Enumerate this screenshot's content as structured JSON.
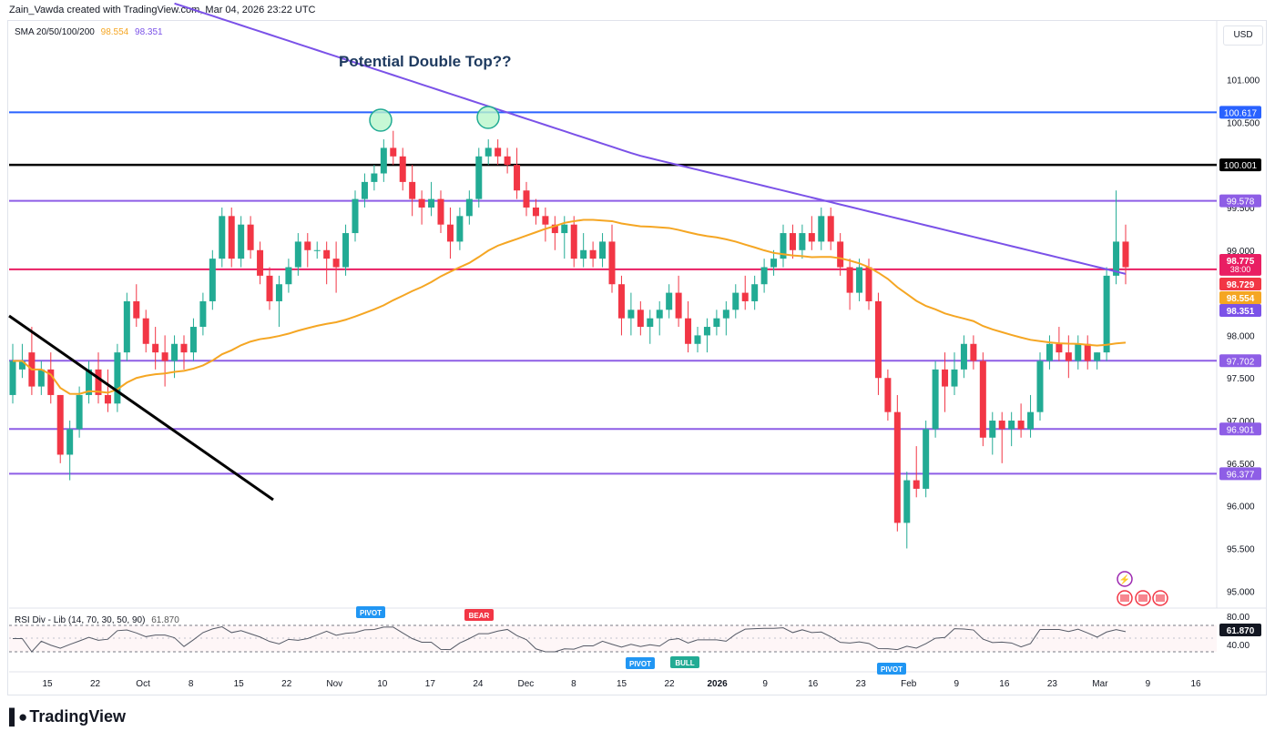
{
  "header": {
    "credit": "Zain_Vawda created with TradingView.com, Mar 04, 2026 23:22 UTC"
  },
  "legend": {
    "sma_label": "SMA 20/50/100/200",
    "sma_val1": "98.554",
    "sma_val2": "98.351",
    "rsi_label": "RSI Div - Lib (14, 70, 30, 50, 90)",
    "rsi_val": "61.870"
  },
  "currency": "USD",
  "brand": {
    "name": "TradingView",
    "logo": "TV-logo-icon"
  },
  "annotation": "Potential Double Top??",
  "colors": {
    "up": "#22ab94",
    "down": "#f23645",
    "sma_orange": "#f5a623",
    "sma_purple": "#7b52e8",
    "level_purple": "#8e5ee6",
    "level_blue": "#2962ff",
    "level_red": "#e91e63"
  },
  "chart_data": {
    "type": "candlestick",
    "y_axis_ticks": [
      "101.000",
      "100.500",
      "99.500",
      "99.000",
      "98.000",
      "97.500",
      "97.000",
      "96.500",
      "96.000",
      "95.500",
      "95.000"
    ],
    "x_axis_ticks": [
      "15",
      "22",
      "Oct",
      "8",
      "15",
      "22",
      "Nov",
      "10",
      "17",
      "24",
      "Dec",
      "8",
      "15",
      "22",
      "2026",
      "9",
      "16",
      "23",
      "Feb",
      "9",
      "16",
      "23",
      "Mar",
      "9",
      "16"
    ],
    "ylim": [
      94.8,
      101.7
    ],
    "horizontal_levels": [
      {
        "value": 100.617,
        "label": "100.617",
        "color": "#2962ff"
      },
      {
        "value": 100.001,
        "label": "100.001",
        "color": "#000000"
      },
      {
        "value": 99.578,
        "label": "99.578",
        "color": "#8e5ee6"
      },
      {
        "value": 98.775,
        "label": "98.775",
        "color": "#e91e63"
      },
      {
        "value": 97.702,
        "label": "97.702",
        "color": "#8e5ee6"
      },
      {
        "value": 96.901,
        "label": "96.901",
        "color": "#8e5ee6"
      },
      {
        "value": 96.377,
        "label": "96.377",
        "color": "#8e5ee6"
      }
    ],
    "price_tags": [
      {
        "label": "98.775",
        "sub": "38:00",
        "color": "#e91e63"
      },
      {
        "label": "98.729",
        "color": "#f23645"
      },
      {
        "label": "98.554",
        "color": "#f5a623"
      },
      {
        "label": "98.351",
        "color": "#7b52e8"
      }
    ],
    "rsi": {
      "ticks": [
        "80.00",
        "40.00"
      ],
      "last": "61.870",
      "markers": [
        "PIVOT",
        "BEAR",
        "PIVOT",
        "BULL",
        "PIVOT"
      ]
    },
    "series": [
      {
        "name": "SMA 20/50/100/200",
        "values": []
      }
    ],
    "candles": [
      [
        97.3,
        97.9,
        97.2,
        97.7
      ],
      [
        97.6,
        97.9,
        97.5,
        97.7
      ],
      [
        97.8,
        98.1,
        97.3,
        97.4
      ],
      [
        97.4,
        97.7,
        97.3,
        97.6
      ],
      [
        97.6,
        97.8,
        97.2,
        97.3
      ],
      [
        97.3,
        97.3,
        96.5,
        96.6
      ],
      [
        96.6,
        97.0,
        96.3,
        96.9
      ],
      [
        96.9,
        97.4,
        96.8,
        97.3
      ],
      [
        97.3,
        97.7,
        97.2,
        97.6
      ],
      [
        97.6,
        97.8,
        97.2,
        97.3
      ],
      [
        97.3,
        97.6,
        97.1,
        97.2
      ],
      [
        97.2,
        97.9,
        97.1,
        97.8
      ],
      [
        97.8,
        98.5,
        97.7,
        98.4
      ],
      [
        98.4,
        98.6,
        98.1,
        98.2
      ],
      [
        98.2,
        98.3,
        97.8,
        97.9
      ],
      [
        97.9,
        98.1,
        97.6,
        97.8
      ],
      [
        97.8,
        98.0,
        97.4,
        97.7
      ],
      [
        97.7,
        98.0,
        97.5,
        97.9
      ],
      [
        97.9,
        98.0,
        97.6,
        97.8
      ],
      [
        97.8,
        98.2,
        97.7,
        98.1
      ],
      [
        98.1,
        98.5,
        98.0,
        98.4
      ],
      [
        98.4,
        99.0,
        98.3,
        98.9
      ],
      [
        98.9,
        99.5,
        98.8,
        99.4
      ],
      [
        99.4,
        99.5,
        98.8,
        98.9
      ],
      [
        98.9,
        99.4,
        98.8,
        99.3
      ],
      [
        99.3,
        99.4,
        98.9,
        99.0
      ],
      [
        99.0,
        99.1,
        98.6,
        98.7
      ],
      [
        98.7,
        98.8,
        98.3,
        98.4
      ],
      [
        98.4,
        98.7,
        98.1,
        98.6
      ],
      [
        98.6,
        98.9,
        98.5,
        98.8
      ],
      [
        98.8,
        99.2,
        98.7,
        99.1
      ],
      [
        99.1,
        99.2,
        98.8,
        99.0
      ],
      [
        99.0,
        99.1,
        98.9,
        99.0
      ],
      [
        99.0,
        99.1,
        98.6,
        98.9
      ],
      [
        98.9,
        99.1,
        98.5,
        98.8
      ],
      [
        98.8,
        99.3,
        98.7,
        99.2
      ],
      [
        99.2,
        99.7,
        99.1,
        99.6
      ],
      [
        99.6,
        99.9,
        99.5,
        99.8
      ],
      [
        99.8,
        100.0,
        99.7,
        99.9
      ],
      [
        99.9,
        100.3,
        99.8,
        100.2
      ],
      [
        100.2,
        100.4,
        100.0,
        100.1
      ],
      [
        100.1,
        100.2,
        99.7,
        99.8
      ],
      [
        99.8,
        100.0,
        99.4,
        99.6
      ],
      [
        99.6,
        99.7,
        99.3,
        99.5
      ],
      [
        99.5,
        99.8,
        99.4,
        99.6
      ],
      [
        99.6,
        99.7,
        99.2,
        99.3
      ],
      [
        99.3,
        99.5,
        98.9,
        99.1
      ],
      [
        99.1,
        99.5,
        99.0,
        99.4
      ],
      [
        99.4,
        99.7,
        99.3,
        99.6
      ],
      [
        99.6,
        100.2,
        99.5,
        100.1
      ],
      [
        100.1,
        100.3,
        100.0,
        100.2
      ],
      [
        100.2,
        100.3,
        100.0,
        100.1
      ],
      [
        100.1,
        100.2,
        99.9,
        100.0
      ],
      [
        100.0,
        100.2,
        99.6,
        99.7
      ],
      [
        99.7,
        99.8,
        99.4,
        99.5
      ],
      [
        99.5,
        99.6,
        99.3,
        99.4
      ],
      [
        99.4,
        99.5,
        99.1,
        99.3
      ],
      [
        99.3,
        99.4,
        99.0,
        99.2
      ],
      [
        99.2,
        99.4,
        98.9,
        99.3
      ],
      [
        99.3,
        99.4,
        98.8,
        98.9
      ],
      [
        98.9,
        99.2,
        98.8,
        99.0
      ],
      [
        99.0,
        99.1,
        98.8,
        98.9
      ],
      [
        98.9,
        99.2,
        98.8,
        99.1
      ],
      [
        99.1,
        99.3,
        98.5,
        98.6
      ],
      [
        98.6,
        98.7,
        98.0,
        98.2
      ],
      [
        98.2,
        98.5,
        98.0,
        98.3
      ],
      [
        98.3,
        98.4,
        98.0,
        98.1
      ],
      [
        98.1,
        98.3,
        97.9,
        98.2
      ],
      [
        98.2,
        98.4,
        98.0,
        98.3
      ],
      [
        98.3,
        98.6,
        98.2,
        98.5
      ],
      [
        98.5,
        98.7,
        98.1,
        98.2
      ],
      [
        98.2,
        98.4,
        97.8,
        97.9
      ],
      [
        97.9,
        98.1,
        97.8,
        98.0
      ],
      [
        98.0,
        98.2,
        97.8,
        98.1
      ],
      [
        98.1,
        98.3,
        98.0,
        98.2
      ],
      [
        98.2,
        98.4,
        98.0,
        98.3
      ],
      [
        98.3,
        98.6,
        98.2,
        98.5
      ],
      [
        98.5,
        98.7,
        98.3,
        98.4
      ],
      [
        98.4,
        98.7,
        98.3,
        98.6
      ],
      [
        98.6,
        98.9,
        98.5,
        98.8
      ],
      [
        98.8,
        99.0,
        98.7,
        98.9
      ],
      [
        98.9,
        99.3,
        98.8,
        99.2
      ],
      [
        99.2,
        99.3,
        98.9,
        99.0
      ],
      [
        99.0,
        99.3,
        98.9,
        99.2
      ],
      [
        99.2,
        99.4,
        99.0,
        99.1
      ],
      [
        99.1,
        99.5,
        99.0,
        99.4
      ],
      [
        99.4,
        99.5,
        99.0,
        99.1
      ],
      [
        99.1,
        99.2,
        98.7,
        98.8
      ],
      [
        98.8,
        98.9,
        98.3,
        98.5
      ],
      [
        98.5,
        98.9,
        98.4,
        98.8
      ],
      [
        98.8,
        98.9,
        98.3,
        98.4
      ],
      [
        98.4,
        98.5,
        97.3,
        97.5
      ],
      [
        97.5,
        97.6,
        97.0,
        97.1
      ],
      [
        97.1,
        97.3,
        95.7,
        95.8
      ],
      [
        95.8,
        96.4,
        95.5,
        96.3
      ],
      [
        96.3,
        96.7,
        96.1,
        96.2
      ],
      [
        96.2,
        97.0,
        96.1,
        96.9
      ],
      [
        96.9,
        97.7,
        96.8,
        97.6
      ],
      [
        97.6,
        97.8,
        97.1,
        97.4
      ],
      [
        97.4,
        97.8,
        97.3,
        97.6
      ],
      [
        97.6,
        98.0,
        97.5,
        97.9
      ],
      [
        97.9,
        98.0,
        97.6,
        97.7
      ],
      [
        97.7,
        97.8,
        96.7,
        96.8
      ],
      [
        96.8,
        97.1,
        96.6,
        97.0
      ],
      [
        97.0,
        97.1,
        96.5,
        96.9
      ],
      [
        96.9,
        97.1,
        96.7,
        97.0
      ],
      [
        97.0,
        97.2,
        96.8,
        96.9
      ],
      [
        96.9,
        97.3,
        96.8,
        97.1
      ],
      [
        97.1,
        97.8,
        97.0,
        97.7
      ],
      [
        97.7,
        98.0,
        97.6,
        97.9
      ],
      [
        97.9,
        98.1,
        97.7,
        97.8
      ],
      [
        97.8,
        98.0,
        97.5,
        97.7
      ],
      [
        97.7,
        98.0,
        97.6,
        97.9
      ],
      [
        97.9,
        98.0,
        97.6,
        97.7
      ],
      [
        97.7,
        97.8,
        97.6,
        97.8
      ],
      [
        97.8,
        98.8,
        97.7,
        98.7
      ],
      [
        98.7,
        99.7,
        98.6,
        99.1
      ],
      [
        99.1,
        99.3,
        98.6,
        98.8
      ]
    ]
  }
}
